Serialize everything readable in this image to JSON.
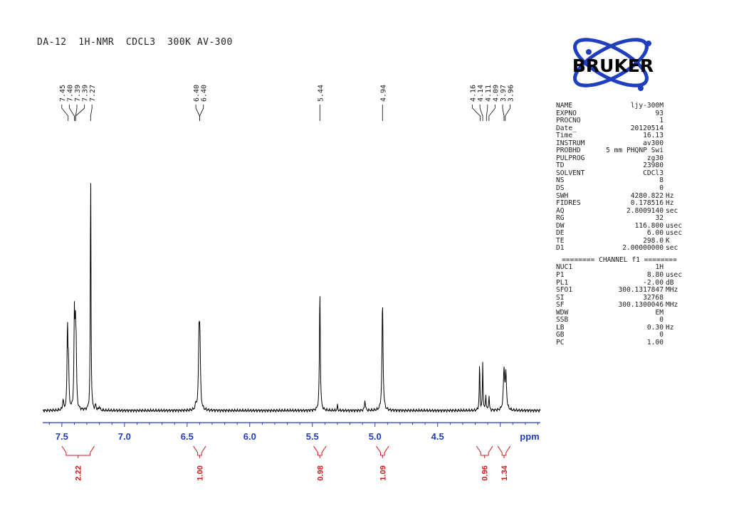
{
  "title": "DA-12  1H-NMR  CDCL3  300K AV-300",
  "colors": {
    "axis": "#1f3fbf",
    "integral": "#d01818",
    "spectrum": "#000000",
    "logo_ring": "#1f3fbf",
    "logo_text": "#000000"
  },
  "logo": {
    "text": "BRUKER"
  },
  "chart_data": {
    "type": "line",
    "title": "DA-12  1H-NMR  CDCL3  300K AV-300",
    "xlabel": "ppm",
    "ylabel": "",
    "x_reversed": true,
    "xlim": [
      7.63,
      3.68
    ],
    "ylim": [
      0,
      1
    ],
    "x_ticks": [
      "7.5",
      "7.0",
      "6.5",
      "6.0",
      "5.5",
      "5.0",
      "4.5",
      "ppm"
    ],
    "x_tick_values": [
      7.5,
      7.0,
      6.5,
      6.0,
      5.5,
      5.0,
      4.5
    ],
    "peak_labels": [
      "7.45",
      "7.40",
      "7.39",
      "7.39",
      "7.27",
      "6.40",
      "6.40",
      "5.44",
      "4.94",
      "4.16",
      "4.14",
      "4.11",
      "4.09",
      "3.97",
      "3.96"
    ],
    "peak_label_positions": [
      7.45,
      7.4,
      7.39,
      7.39,
      7.27,
      6.4,
      6.4,
      5.44,
      4.94,
      4.16,
      4.14,
      4.11,
      4.09,
      3.97,
      3.96
    ],
    "peaks": [
      {
        "ppm": 7.455,
        "height": 0.32,
        "width": 0.004
      },
      {
        "ppm": 7.447,
        "height": 0.16,
        "width": 0.004
      },
      {
        "ppm": 7.4,
        "height": 0.34,
        "width": 0.004
      },
      {
        "ppm": 7.392,
        "height": 0.26,
        "width": 0.004
      },
      {
        "ppm": 7.386,
        "height": 0.2,
        "width": 0.004
      },
      {
        "ppm": 7.27,
        "height": 0.94,
        "width": 0.003
      },
      {
        "ppm": 7.23,
        "height": 0.02,
        "width": 0.004
      },
      {
        "ppm": 7.2,
        "height": 0.015,
        "width": 0.004
      },
      {
        "ppm": 7.49,
        "height": 0.04,
        "width": 0.004
      },
      {
        "ppm": 6.405,
        "height": 0.26,
        "width": 0.005
      },
      {
        "ppm": 6.398,
        "height": 0.24,
        "width": 0.005
      },
      {
        "ppm": 6.43,
        "height": 0.02,
        "width": 0.005
      },
      {
        "ppm": 5.44,
        "height": 0.46,
        "width": 0.004
      },
      {
        "ppm": 5.3,
        "height": 0.02,
        "width": 0.003
      },
      {
        "ppm": 5.08,
        "height": 0.04,
        "width": 0.004
      },
      {
        "ppm": 4.94,
        "height": 0.41,
        "width": 0.005
      },
      {
        "ppm": 4.165,
        "height": 0.18,
        "width": 0.003
      },
      {
        "ppm": 4.14,
        "height": 0.18,
        "width": 0.003
      },
      {
        "ppm": 4.115,
        "height": 0.06,
        "width": 0.003
      },
      {
        "ppm": 4.09,
        "height": 0.06,
        "width": 0.003
      },
      {
        "ppm": 3.97,
        "height": 0.15,
        "width": 0.006
      },
      {
        "ppm": 3.955,
        "height": 0.13,
        "width": 0.006
      }
    ],
    "integrals": [
      {
        "label": "2.22",
        "from": 7.5,
        "to": 7.24
      },
      {
        "label": "1.00",
        "from": 6.45,
        "to": 6.35
      },
      {
        "label": "0.98",
        "from": 5.49,
        "to": 5.39
      },
      {
        "label": "1.09",
        "from": 4.99,
        "to": 4.89
      },
      {
        "label": "0.96",
        "from": 4.19,
        "to": 4.06
      },
      {
        "label": "1.34",
        "from": 4.02,
        "to": 3.92
      }
    ]
  },
  "params": {
    "rows": [
      {
        "k": "NAME",
        "v": "ljy-300M",
        "u": ""
      },
      {
        "k": "EXPNO",
        "v": "93",
        "u": ""
      },
      {
        "k": "PROCNO",
        "v": "1",
        "u": ""
      },
      {
        "k": "Date_",
        "v": "20120514",
        "u": ""
      },
      {
        "k": "Time",
        "v": "16.13",
        "u": ""
      },
      {
        "k": "INSTRUM",
        "v": "av300",
        "u": ""
      },
      {
        "k": "PROBHD",
        "v": "5 mm PHQNP Swi",
        "u": ""
      },
      {
        "k": "PULPROG",
        "v": "zg30",
        "u": ""
      },
      {
        "k": "TD",
        "v": "23980",
        "u": ""
      },
      {
        "k": "SOLVENT",
        "v": "CDCl3",
        "u": ""
      },
      {
        "k": "NS",
        "v": "8",
        "u": ""
      },
      {
        "k": "DS",
        "v": "0",
        "u": ""
      },
      {
        "k": "SWH",
        "v": "4280.822",
        "u": "Hz"
      },
      {
        "k": "FIDRES",
        "v": "0.178516",
        "u": "Hz"
      },
      {
        "k": "AQ",
        "v": "2.8009140",
        "u": "sec"
      },
      {
        "k": "RG",
        "v": "32",
        "u": ""
      },
      {
        "k": "DW",
        "v": "116.800",
        "u": "usec"
      },
      {
        "k": "DE",
        "v": "6.00",
        "u": "usec"
      },
      {
        "k": "TE",
        "v": "298.0",
        "u": "K"
      },
      {
        "k": "D1",
        "v": "2.00000000",
        "u": "sec"
      }
    ],
    "channel_header": "======== CHANNEL f1 ========",
    "channel_rows": [
      {
        "k": "NUC1",
        "v": "1H",
        "u": ""
      },
      {
        "k": "P1",
        "v": "8.80",
        "u": "usec"
      },
      {
        "k": "PL1",
        "v": "-2.00",
        "u": "dB"
      },
      {
        "k": "SFO1",
        "v": "300.1317847",
        "u": "MHz"
      },
      {
        "k": "SI",
        "v": "32768",
        "u": ""
      },
      {
        "k": "SF",
        "v": "300.1300046",
        "u": "MHz"
      },
      {
        "k": "WDW",
        "v": "EM",
        "u": ""
      },
      {
        "k": "SSB",
        "v": "0",
        "u": ""
      },
      {
        "k": "LB",
        "v": "0.30",
        "u": "Hz"
      },
      {
        "k": "GB",
        "v": "0",
        "u": ""
      },
      {
        "k": "PC",
        "v": "1.00",
        "u": ""
      }
    ]
  }
}
